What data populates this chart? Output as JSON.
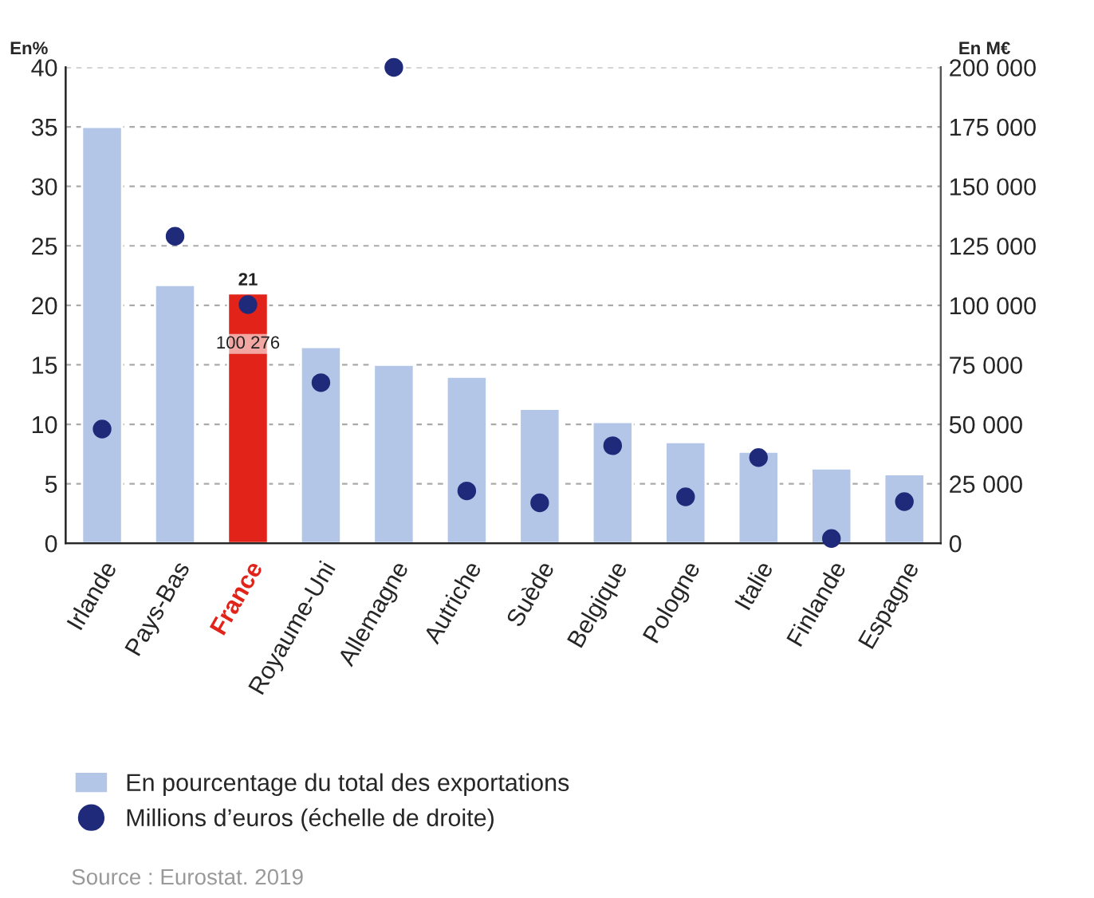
{
  "chart_data": {
    "type": "bar",
    "categories": [
      "Irlande",
      "Pays-Bas",
      "France",
      "Royaume-Uni",
      "Allemagne",
      "Autriche",
      "Suède",
      "Belgique",
      "Pologne",
      "Italie",
      "Finlande",
      "Espagne"
    ],
    "series": [
      {
        "name": "En pourcentage du total des exportations",
        "color": "#b4c6e7",
        "colors": [
          "#b4c6e7",
          "#b4c6e7",
          "#e2231a",
          "#b4c6e7",
          "#b4c6e7",
          "#b4c6e7",
          "#b4c6e7",
          "#b4c6e7",
          "#b4c6e7",
          "#b4c6e7",
          "#b4c6e7",
          "#b4c6e7"
        ],
        "values": [
          35,
          21.7,
          21,
          16.5,
          15,
          14,
          11.3,
          10.2,
          8.5,
          7.7,
          6.3,
          5.8
        ],
        "value_labels": [
          null,
          null,
          "21",
          null,
          null,
          null,
          null,
          null,
          null,
          null,
          null,
          null
        ]
      },
      {
        "name": "Millions d’euros (échelle de droite)",
        "type": "scatter",
        "axis": "y2",
        "color": "#1f2a7a",
        "values": [
          48000,
          129000,
          100276,
          67500,
          200000,
          22000,
          17000,
          41000,
          19500,
          36000,
          2000,
          17500
        ],
        "value_labels": [
          null,
          null,
          "100 276",
          null,
          null,
          null,
          null,
          null,
          null,
          null,
          null,
          null
        ]
      }
    ],
    "ylabel": "En%",
    "y2label": "En M€",
    "ylim": [
      0,
      40
    ],
    "yticks": [
      0,
      5,
      10,
      15,
      20,
      25,
      30,
      35,
      40
    ],
    "y2lim": [
      0,
      200000
    ],
    "y2ticks": [
      0,
      {
        "value": 25000,
        "label": "25 000"
      },
      {
        "value": 50000,
        "label": "50 000"
      },
      {
        "value": 75000,
        "label": "75 000"
      },
      {
        "value": 100000,
        "label": "100 000"
      },
      {
        "value": 125000,
        "label": "125 000"
      },
      {
        "value": 150000,
        "label": "150 000"
      },
      {
        "value": 175000,
        "label": "175 000"
      },
      {
        "value": 200000,
        "label": "200 000"
      }
    ],
    "grid": "y",
    "legend": "bottom",
    "marker": "circle",
    "annotations": [
      "Source : Eurostat. 2019"
    ]
  }
}
